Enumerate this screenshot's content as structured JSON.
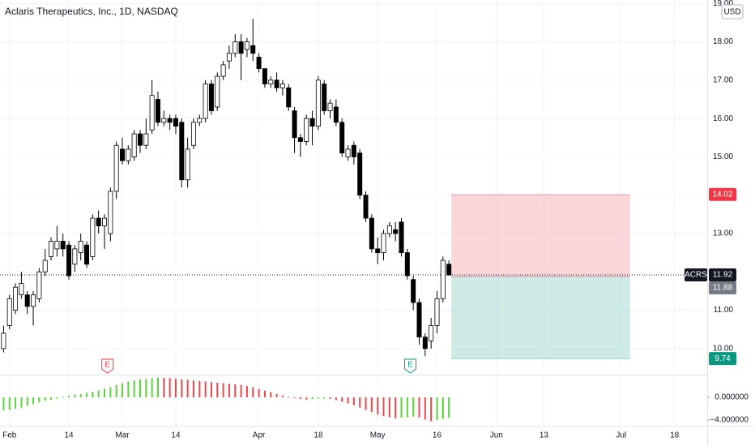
{
  "chart_data": [
    {
      "type": "candlestick",
      "title": "Aclaris Therapeutics, Inc., 1D, NASDAQ",
      "currency": "USD",
      "x": [
        0,
        1,
        2,
        3,
        4,
        5,
        6,
        7,
        8,
        9,
        10,
        11,
        12,
        13,
        14,
        15,
        16,
        17,
        18,
        19,
        20,
        21,
        22,
        23,
        24,
        25,
        26,
        27,
        28,
        29,
        30,
        31,
        32,
        33,
        34,
        35,
        36,
        37,
        38,
        39,
        40,
        41,
        42,
        43,
        44,
        45,
        46,
        47,
        48,
        49,
        50,
        51,
        52,
        53,
        54,
        55,
        56,
        57,
        58,
        59,
        60,
        61,
        62,
        63,
        64,
        65,
        66,
        67,
        68,
        69,
        70,
        71,
        72,
        73,
        74,
        75
      ],
      "open": [
        10.0,
        10.6,
        11.0,
        11.4,
        11.4,
        11.1,
        11.3,
        12.0,
        12.4,
        12.6,
        12.8,
        12.7,
        12.2,
        12.5,
        12.7,
        12.4,
        13.4,
        13.2,
        13.0,
        14.1,
        15.2,
        14.9,
        15.0,
        15.6,
        15.3,
        15.7,
        16.5,
        15.9,
        16.0,
        16.0,
        15.9,
        14.4,
        15.3,
        15.9,
        16.0,
        16.9,
        16.3,
        17.1,
        17.5,
        17.7,
        18.0,
        17.8,
        17.9,
        17.6,
        17.3,
        16.9,
        17.0,
        16.8,
        16.8,
        16.2,
        15.5,
        15.4,
        16.0,
        15.8,
        16.9,
        16.2,
        16.3,
        15.9,
        15.0,
        15.3,
        15.1,
        14.0,
        13.4,
        12.6,
        12.5,
        13.0,
        13.1,
        13.3,
        12.5,
        11.8,
        11.2,
        10.3,
        10.2,
        10.6,
        11.3,
        12.2
      ],
      "high": [
        10.6,
        11.4,
        11.7,
        12.0,
        11.5,
        11.5,
        12.1,
        12.6,
        12.9,
        13.2,
        13.0,
        12.8,
        12.7,
        13.0,
        12.8,
        13.5,
        13.6,
        13.5,
        14.2,
        15.4,
        15.5,
        15.3,
        15.7,
        15.7,
        16.0,
        17.0,
        16.7,
        16.2,
        16.1,
        16.1,
        16.0,
        15.5,
        16.0,
        16.1,
        17.0,
        17.0,
        17.2,
        17.5,
        17.9,
        18.2,
        18.2,
        18.1,
        18.6,
        17.7,
        17.3,
        17.1,
        17.2,
        17.0,
        16.9,
        16.3,
        15.6,
        16.1,
        16.2,
        17.1,
        17.0,
        16.5,
        16.5,
        16.0,
        15.3,
        15.4,
        15.2,
        14.1,
        13.5,
        12.9,
        13.1,
        13.3,
        13.3,
        13.4,
        12.6,
        11.9,
        11.3,
        10.4,
        10.8,
        11.5,
        12.4,
        12.3
      ],
      "low": [
        9.9,
        10.5,
        10.9,
        11.3,
        10.9,
        10.6,
        11.2,
        11.9,
        12.3,
        12.4,
        12.4,
        11.8,
        12.0,
        12.3,
        12.1,
        12.3,
        13.0,
        12.6,
        12.8,
        13.9,
        14.8,
        14.8,
        14.9,
        15.1,
        15.2,
        15.6,
        15.8,
        15.8,
        15.7,
        15.6,
        14.2,
        14.2,
        15.2,
        15.8,
        15.9,
        16.1,
        16.2,
        17.0,
        17.3,
        17.6,
        17.0,
        17.6,
        17.5,
        17.2,
        16.8,
        16.8,
        16.7,
        16.6,
        16.2,
        15.1,
        15.0,
        15.3,
        15.3,
        15.7,
        16.1,
        16.0,
        15.8,
        15.0,
        14.9,
        14.8,
        13.9,
        13.3,
        12.5,
        12.2,
        12.3,
        12.9,
        12.8,
        12.4,
        11.8,
        11.0,
        10.1,
        9.8,
        10.0,
        10.4,
        11.2,
        11.9
      ],
      "close": [
        10.4,
        11.3,
        11.6,
        11.7,
        11.1,
        11.4,
        12.0,
        12.3,
        12.8,
        12.8,
        12.6,
        11.9,
        12.6,
        12.8,
        12.2,
        13.4,
        13.2,
        13.4,
        14.1,
        15.3,
        14.9,
        15.2,
        15.6,
        15.3,
        15.6,
        16.6,
        15.9,
        16.0,
        15.9,
        15.8,
        14.4,
        15.2,
        15.9,
        16.0,
        16.9,
        16.2,
        17.1,
        17.4,
        17.7,
        18.0,
        17.7,
        18.0,
        17.7,
        17.3,
        16.9,
        17.0,
        16.8,
        16.9,
        16.3,
        15.5,
        15.4,
        16.0,
        15.8,
        17.0,
        16.2,
        16.4,
        15.9,
        15.1,
        15.2,
        15.0,
        14.0,
        13.4,
        12.6,
        12.5,
        13.0,
        13.2,
        13.0,
        12.5,
        11.9,
        11.2,
        10.3,
        10.0,
        10.6,
        11.3,
        12.3,
        11.92
      ],
      "up_color": "#ffffff",
      "down_color": "#000000",
      "wick_color": "#000000",
      "xlim": [
        -0.6,
        118.5
      ],
      "xticks": [
        {
          "value": 1,
          "label": "Feb"
        },
        {
          "value": 11,
          "label": "14"
        },
        {
          "value": 20,
          "label": "Mar"
        },
        {
          "value": 29,
          "label": "14"
        },
        {
          "value": 43,
          "label": "Apr"
        },
        {
          "value": 53,
          "label": "18"
        },
        {
          "value": 63,
          "label": "May"
        },
        {
          "value": 73,
          "label": "16"
        },
        {
          "value": 83,
          "label": "Jun"
        },
        {
          "value": 91,
          "label": "13"
        },
        {
          "value": 104,
          "label": "Jul"
        },
        {
          "value": 113,
          "label": "18"
        }
      ],
      "ylim": [
        9.32,
        19.09
      ],
      "yticks": [
        {
          "value": 10,
          "label": "10.00"
        },
        {
          "value": 11,
          "label": "11.00"
        },
        {
          "value": 12,
          "label": "12.00"
        },
        {
          "value": 13,
          "label": "13.00"
        },
        {
          "value": 14,
          "label": "14.00"
        },
        {
          "value": 15,
          "label": "15.00"
        },
        {
          "value": 16,
          "label": "16.00"
        },
        {
          "value": 17,
          "label": "17.00"
        },
        {
          "value": 18,
          "label": "18.00"
        },
        {
          "value": 19,
          "label": "19.00"
        }
      ],
      "grid": true,
      "last": {
        "symbol": "ACRS",
        "value": 11.92
      },
      "position": {
        "x_start": 75.4,
        "x_end": 105.5,
        "stop": 14.02,
        "entry": 11.88,
        "target": 9.74,
        "stop_color": "#f23645",
        "target_color": "#089981"
      },
      "events": [
        {
          "x": 17.5,
          "label": "E",
          "color": "#f23645"
        },
        {
          "x": 68.5,
          "label": "E",
          "color": "#089981"
        }
      ]
    },
    {
      "type": "histogram",
      "values": [
        -2.3,
        -2.2,
        -2.0,
        -1.8,
        -1.5,
        -1.2,
        -0.9,
        -0.6,
        -0.4,
        -0.2,
        0.1,
        0.3,
        0.5,
        0.6,
        0.8,
        1.0,
        1.2,
        1.5,
        1.8,
        2.2,
        2.5,
        2.8,
        3.0,
        3.2,
        3.3,
        3.4,
        3.5,
        3.45,
        3.4,
        3.3,
        3.2,
        3.1,
        3.0,
        2.9,
        2.8,
        2.7,
        2.6,
        2.5,
        2.4,
        2.3,
        2.2,
        2.0,
        1.8,
        1.5,
        1.2,
        0.9,
        0.6,
        0.3,
        0.1,
        -0.1,
        -0.3,
        -0.4,
        -0.3,
        -0.2,
        -0.2,
        -0.3,
        -0.5,
        -0.8,
        -1.1,
        -1.4,
        -1.8,
        -2.2,
        -2.6,
        -3.0,
        -3.3,
        -3.5,
        -3.7,
        -3.6,
        -3.5,
        -3.4,
        -3.5,
        -3.9,
        -4.2,
        -4.0,
        -3.8,
        -3.6
      ],
      "up_color": "#5ad43b",
      "down_color": "#f0464e",
      "ylim": [
        -5,
        4
      ],
      "yticks": [
        {
          "value": 0,
          "label": "0.000000"
        },
        {
          "value": -4,
          "label": "−4.000000"
        }
      ]
    }
  ]
}
